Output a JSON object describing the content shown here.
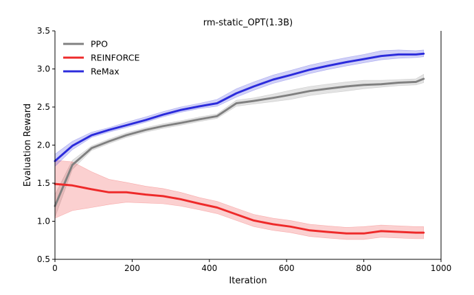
{
  "chart_data": {
    "type": "line",
    "title": "rm-static_OPT(1.3B)",
    "xlabel": "Iteration",
    "ylabel": "Evaluation Reward",
    "xlim": [
      0,
      1000
    ],
    "ylim": [
      0.5,
      3.5
    ],
    "xticks": [
      0,
      200,
      400,
      600,
      800,
      1000
    ],
    "yticks": [
      0.5,
      1.0,
      1.5,
      2.0,
      2.5,
      3.0,
      3.5
    ],
    "xtick_labels": [
      "0",
      "200",
      "400",
      "600",
      "800",
      "1000"
    ],
    "ytick_labels": [
      "0.5",
      "1.0",
      "1.5",
      "2.0",
      "2.5",
      "3.0",
      "3.5"
    ],
    "grid": false,
    "legend_position": "top-left",
    "series": [
      {
        "name": "PPO",
        "color": "#808080",
        "x": [
          0,
          45,
          95,
          140,
          185,
          235,
          280,
          325,
          375,
          420,
          470,
          515,
          565,
          610,
          660,
          705,
          755,
          800,
          845,
          890,
          935,
          955
        ],
        "y": [
          1.2,
          1.74,
          1.96,
          2.05,
          2.13,
          2.2,
          2.25,
          2.29,
          2.34,
          2.38,
          2.55,
          2.58,
          2.62,
          2.66,
          2.71,
          2.74,
          2.77,
          2.79,
          2.8,
          2.82,
          2.83,
          2.87
        ],
        "lower": [
          1.05,
          1.68,
          1.93,
          2.02,
          2.1,
          2.17,
          2.22,
          2.26,
          2.31,
          2.35,
          2.51,
          2.54,
          2.57,
          2.6,
          2.65,
          2.68,
          2.71,
          2.74,
          2.76,
          2.78,
          2.79,
          2.82
        ],
        "upper": [
          1.35,
          1.8,
          1.99,
          2.08,
          2.16,
          2.23,
          2.28,
          2.32,
          2.37,
          2.41,
          2.59,
          2.62,
          2.67,
          2.72,
          2.77,
          2.8,
          2.83,
          2.85,
          2.85,
          2.86,
          2.87,
          2.93
        ]
      },
      {
        "name": "REINFORCE",
        "color": "#ee2a2a",
        "x": [
          0,
          45,
          95,
          140,
          185,
          235,
          280,
          325,
          375,
          420,
          470,
          515,
          565,
          610,
          660,
          705,
          755,
          800,
          845,
          890,
          935,
          955
        ],
        "y": [
          1.49,
          1.47,
          1.42,
          1.38,
          1.38,
          1.35,
          1.33,
          1.29,
          1.23,
          1.18,
          1.09,
          1.01,
          0.96,
          0.93,
          0.88,
          0.86,
          0.84,
          0.84,
          0.87,
          0.86,
          0.85,
          0.85
        ],
        "lower": [
          1.04,
          1.14,
          1.18,
          1.22,
          1.25,
          1.24,
          1.23,
          1.2,
          1.15,
          1.1,
          1.01,
          0.93,
          0.88,
          0.85,
          0.8,
          0.78,
          0.76,
          0.76,
          0.79,
          0.78,
          0.77,
          0.77
        ],
        "upper": [
          1.8,
          1.78,
          1.65,
          1.55,
          1.51,
          1.46,
          1.43,
          1.38,
          1.31,
          1.26,
          1.17,
          1.09,
          1.04,
          1.01,
          0.96,
          0.94,
          0.92,
          0.93,
          0.95,
          0.94,
          0.93,
          0.93
        ]
      },
      {
        "name": "ReMax",
        "color": "#2b2bdc",
        "x": [
          0,
          45,
          95,
          140,
          185,
          235,
          280,
          325,
          375,
          420,
          470,
          515,
          565,
          610,
          660,
          705,
          755,
          800,
          845,
          890,
          935,
          955
        ],
        "y": [
          1.79,
          1.99,
          2.13,
          2.2,
          2.26,
          2.33,
          2.4,
          2.46,
          2.51,
          2.55,
          2.68,
          2.77,
          2.86,
          2.92,
          2.99,
          3.04,
          3.09,
          3.13,
          3.17,
          3.19,
          3.19,
          3.2
        ],
        "lower": [
          1.72,
          1.94,
          2.1,
          2.17,
          2.23,
          2.3,
          2.37,
          2.43,
          2.48,
          2.51,
          2.63,
          2.72,
          2.81,
          2.87,
          2.94,
          2.99,
          3.04,
          3.08,
          3.12,
          3.14,
          3.15,
          3.16
        ],
        "upper": [
          1.88,
          2.05,
          2.17,
          2.23,
          2.3,
          2.37,
          2.44,
          2.5,
          2.55,
          2.6,
          2.74,
          2.83,
          2.92,
          2.98,
          3.05,
          3.1,
          3.15,
          3.19,
          3.24,
          3.25,
          3.24,
          3.25
        ]
      }
    ]
  }
}
